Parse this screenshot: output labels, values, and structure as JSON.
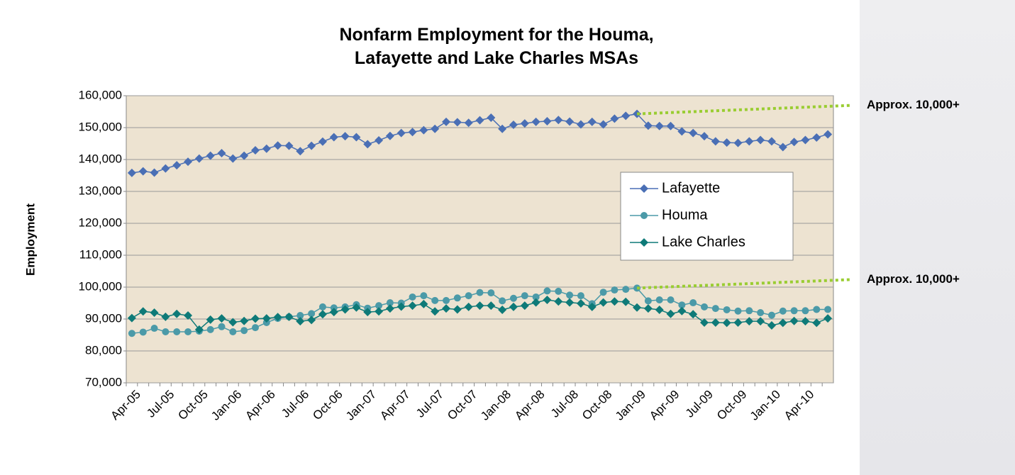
{
  "chart_data": {
    "type": "line",
    "title": "Nonfarm Employment for the Houma, Lafayette and Lake Charles MSAs",
    "y_label": "Employment",
    "categories": [
      "Apr-05",
      null,
      null,
      "Jul-05",
      null,
      null,
      "Oct-05",
      null,
      null,
      "Jan-06",
      null,
      null,
      "Apr-06",
      null,
      null,
      "Jul-06",
      null,
      null,
      "Oct-06",
      null,
      null,
      "Jan-07",
      null,
      null,
      "Apr-07",
      null,
      null,
      "Jul-07",
      null,
      null,
      "Oct-07",
      null,
      null,
      "Jan-08",
      null,
      null,
      "Apr-08",
      null,
      null,
      "Jul-08",
      null,
      null,
      "Oct-08",
      null,
      null,
      "Jan-09",
      null,
      null,
      "Apr-09",
      null,
      null,
      "Jul-09",
      null,
      null,
      "Oct-09",
      null,
      null,
      "Jan-10",
      null,
      null,
      "Apr-10",
      null,
      null
    ],
    "series": [
      {
        "name": "Lafayette",
        "color": "#4a6fb5",
        "marker": "diamond",
        "values": [
          135800,
          136300,
          135900,
          137200,
          138200,
          139300,
          140300,
          141200,
          142000,
          140300,
          141200,
          142900,
          143400,
          144400,
          144300,
          142600,
          144300,
          145600,
          147000,
          147300,
          147000,
          144800,
          146000,
          147400,
          148300,
          148600,
          149200,
          149600,
          151800,
          151700,
          151500,
          152300,
          153100,
          149600,
          150900,
          151300,
          151800,
          152000,
          152400,
          151900,
          151000,
          151800,
          151000,
          152800,
          153700,
          154300,
          150600,
          150500,
          150500,
          148800,
          148300,
          147300,
          145700,
          145300,
          145200,
          145700,
          146100,
          145700,
          143900,
          145500,
          146100,
          146900,
          147900
        ]
      },
      {
        "name": "Houma",
        "color": "#4b9aa8",
        "marker": "circle",
        "values": [
          85500,
          85900,
          87100,
          86000,
          86000,
          86000,
          86200,
          86700,
          87600,
          86000,
          86400,
          87300,
          88900,
          90200,
          90700,
          91100,
          91700,
          93800,
          93500,
          93800,
          94500,
          93400,
          94200,
          95100,
          95000,
          96900,
          97300,
          95800,
          95800,
          96600,
          97300,
          98300,
          98200,
          95700,
          96500,
          97300,
          96900,
          98800,
          98700,
          97500,
          97300,
          94800,
          98400,
          99100,
          99300,
          99700,
          95700,
          96000,
          96000,
          94400,
          95100,
          93800,
          93300,
          92900,
          92500,
          92600,
          92000,
          91200,
          92500,
          92600,
          92600,
          93000,
          93000
        ]
      },
      {
        "name": "Lake Charles",
        "color": "#0e7a78",
        "marker": "diamond",
        "values": [
          90300,
          92400,
          92000,
          90700,
          91600,
          91100,
          86700,
          89800,
          90200,
          89000,
          89400,
          90100,
          90200,
          90600,
          90700,
          89300,
          89700,
          91500,
          92200,
          93000,
          93600,
          92200,
          92400,
          93300,
          93900,
          94200,
          94700,
          92400,
          93300,
          93000,
          93800,
          94200,
          94200,
          92900,
          93800,
          94200,
          95200,
          96000,
          95500,
          95200,
          94900,
          93800,
          95200,
          95500,
          95400,
          93600,
          93300,
          92900,
          91600,
          92500,
          91500,
          88900,
          88900,
          88800,
          88900,
          89300,
          89300,
          88000,
          88800,
          89400,
          89300,
          88800,
          90200
        ]
      }
    ],
    "ylim": [
      70000,
      160000
    ],
    "yticks": [
      {
        "value": 70000,
        "label": "70,000"
      },
      {
        "value": 80000,
        "label": "80,000"
      },
      {
        "value": 90000,
        "label": "90,000"
      },
      {
        "value": 100000,
        "label": "100,000"
      },
      {
        "value": 110000,
        "label": "110,000"
      },
      {
        "value": 120000,
        "label": "120,000"
      },
      {
        "value": 130000,
        "label": "130,000"
      },
      {
        "value": 140000,
        "label": "140,000"
      },
      {
        "value": 150000,
        "label": "150,000"
      },
      {
        "value": 160000,
        "label": "160,000"
      }
    ],
    "grid": true,
    "plot_color": "#ede3d1",
    "annotation_color": "#9acd32",
    "annotations": [
      "Approx. 10,000+",
      "Approx. 10,000+"
    ]
  }
}
